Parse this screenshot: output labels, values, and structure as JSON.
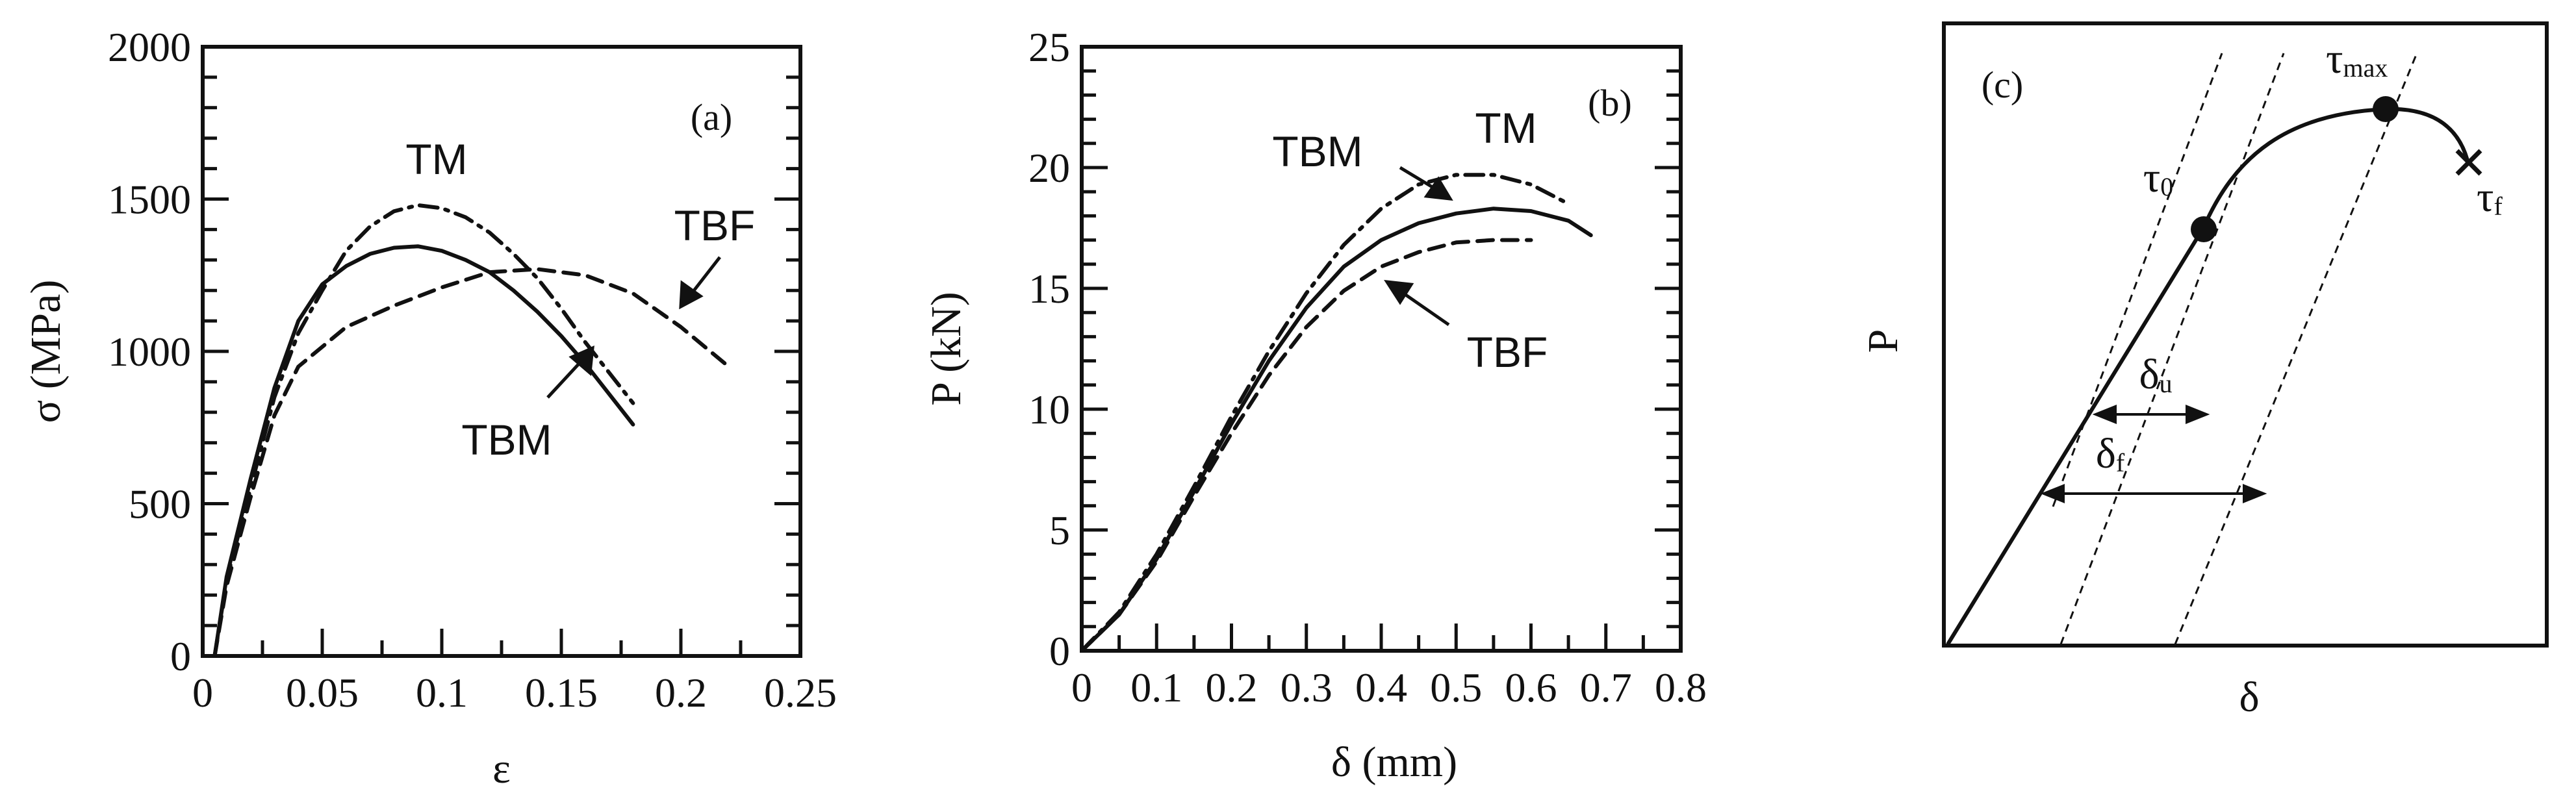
{
  "chart_data": [
    {
      "panel": "(a)",
      "type": "line",
      "xlabel": "ε",
      "ylabel": "σ (MPa)",
      "xlim": [
        0,
        0.25
      ],
      "ylim": [
        0,
        2000
      ],
      "xticks": [
        "0",
        "0.05",
        "0.1",
        "0.15",
        "0.2",
        "0.25"
      ],
      "yticks": [
        "0",
        "500",
        "1000",
        "1500",
        "2000"
      ],
      "series": [
        {
          "name": "TM",
          "style": "dashdot",
          "x": [
            0.005,
            0.01,
            0.02,
            0.03,
            0.04,
            0.05,
            0.06,
            0.07,
            0.08,
            0.09,
            0.1,
            0.11,
            0.12,
            0.13,
            0.14,
            0.15,
            0.16,
            0.17,
            0.18
          ],
          "y": [
            0,
            250,
            550,
            850,
            1060,
            1200,
            1330,
            1410,
            1460,
            1480,
            1470,
            1440,
            1390,
            1320,
            1240,
            1140,
            1030,
            930,
            830
          ]
        },
        {
          "name": "TBF",
          "style": "dashed",
          "x": [
            0.005,
            0.01,
            0.02,
            0.03,
            0.04,
            0.06,
            0.08,
            0.1,
            0.12,
            0.14,
            0.16,
            0.18,
            0.2,
            0.22
          ],
          "y": [
            0,
            230,
            520,
            790,
            950,
            1080,
            1150,
            1210,
            1260,
            1270,
            1250,
            1190,
            1080,
            950
          ]
        },
        {
          "name": "TBM",
          "style": "solid",
          "x": [
            0.005,
            0.01,
            0.02,
            0.03,
            0.04,
            0.05,
            0.06,
            0.07,
            0.08,
            0.09,
            0.1,
            0.11,
            0.12,
            0.13,
            0.14,
            0.15,
            0.16,
            0.17,
            0.18
          ],
          "y": [
            0,
            260,
            580,
            880,
            1100,
            1220,
            1280,
            1320,
            1340,
            1345,
            1330,
            1300,
            1260,
            1200,
            1130,
            1050,
            960,
            860,
            760
          ]
        }
      ],
      "annotations": [
        "TM",
        "TBF",
        "TBM",
        "(a)"
      ]
    },
    {
      "panel": "(b)",
      "type": "line",
      "xlabel": "δ (mm)",
      "ylabel": "P (kN)",
      "xlim": [
        0,
        0.8
      ],
      "ylim": [
        0,
        25
      ],
      "xticks": [
        "0",
        "0.1",
        "0.2",
        "0.3",
        "0.4",
        "0.5",
        "0.6",
        "0.7",
        "0.8"
      ],
      "yticks": [
        "0",
        "5",
        "10",
        "15",
        "20",
        "25"
      ],
      "series": [
        {
          "name": "TM",
          "style": "dashdot",
          "x": [
            0,
            0.05,
            0.1,
            0.15,
            0.2,
            0.25,
            0.3,
            0.35,
            0.4,
            0.45,
            0.5,
            0.55,
            0.6,
            0.65
          ],
          "y": [
            0,
            1.6,
            4.0,
            6.8,
            9.7,
            12.4,
            14.8,
            16.8,
            18.3,
            19.3,
            19.7,
            19.7,
            19.3,
            18.5
          ]
        },
        {
          "name": "TBM",
          "style": "solid",
          "x": [
            0,
            0.05,
            0.1,
            0.15,
            0.2,
            0.25,
            0.3,
            0.35,
            0.4,
            0.45,
            0.5,
            0.55,
            0.6,
            0.65,
            0.68
          ],
          "y": [
            0,
            1.5,
            3.8,
            6.6,
            9.4,
            12.0,
            14.2,
            15.9,
            17.0,
            17.7,
            18.1,
            18.3,
            18.2,
            17.8,
            17.2
          ]
        },
        {
          "name": "TBF",
          "style": "dashed",
          "x": [
            0,
            0.05,
            0.1,
            0.15,
            0.2,
            0.25,
            0.3,
            0.35,
            0.4,
            0.45,
            0.5,
            0.55,
            0.6
          ],
          "y": [
            0,
            1.5,
            3.7,
            6.4,
            9.0,
            11.4,
            13.4,
            14.9,
            15.9,
            16.5,
            16.9,
            17.0,
            17.0
          ]
        }
      ],
      "annotations": [
        "TM",
        "TBM",
        "TBF",
        "(b)"
      ]
    },
    {
      "panel": "(c)",
      "type": "diagram",
      "xlabel": "δ",
      "ylabel": "P",
      "points": [
        {
          "label": "τ",
          "subscript": "0"
        },
        {
          "label": "τ",
          "subscript": "max"
        },
        {
          "label": "τ",
          "subscript": "f"
        }
      ],
      "measures": [
        {
          "label": "δ",
          "subscript": "u"
        },
        {
          "label": "δ",
          "subscript": "f"
        }
      ],
      "annotations": [
        "(c)"
      ]
    }
  ]
}
